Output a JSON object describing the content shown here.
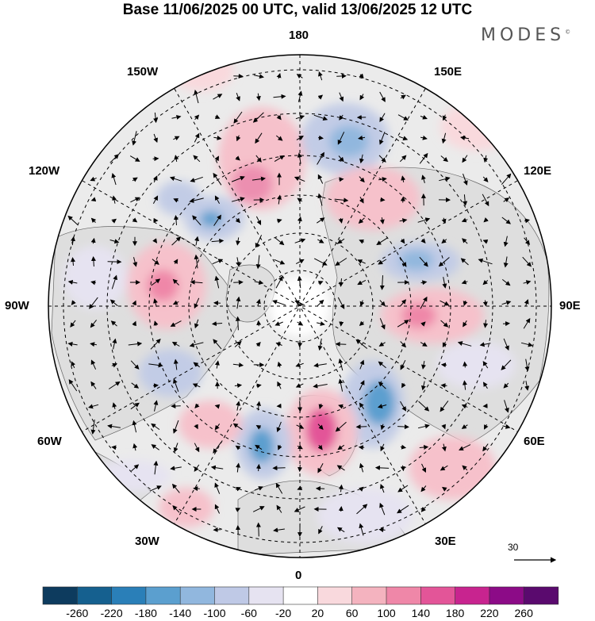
{
  "title": "Base 11/06/2025 00 UTC, valid 13/06/2025 12 UTC",
  "brand": {
    "name": "MODES",
    "mark": "©"
  },
  "longitude_labels": {
    "deg180": "180",
    "e150": "150E",
    "e120": "120E",
    "e90": "90E",
    "e60": "60E",
    "e30": "30E",
    "deg0": "0",
    "w30": "30W",
    "w60": "60W",
    "w90": "90W",
    "w120": "120W",
    "w150": "150W"
  },
  "reference_vector": {
    "value": "30"
  },
  "colorbar": {
    "labels": [
      "-260",
      "-220",
      "-180",
      "-140",
      "-100",
      "-60",
      "-20",
      "20",
      "60",
      "100",
      "140",
      "180",
      "220",
      "260"
    ],
    "colors": [
      "#0d3b5e",
      "#15608f",
      "#2a7fb8",
      "#5b9fcf",
      "#91b7de",
      "#bfc9e6",
      "#e6e3f1",
      "#ffffff",
      "#f9d9dd",
      "#f4b3bf",
      "#ef87a8",
      "#e35598",
      "#c8248f",
      "#8c0b87",
      "#5a0a6e"
    ]
  },
  "colors": {
    "background": "#ffffff",
    "disk": "#ebebeb",
    "land": "#e1e1e1",
    "grid": "#000000",
    "positive_anomaly": "#ef87a8",
    "negative_anomaly": "#5b9fcf"
  }
}
